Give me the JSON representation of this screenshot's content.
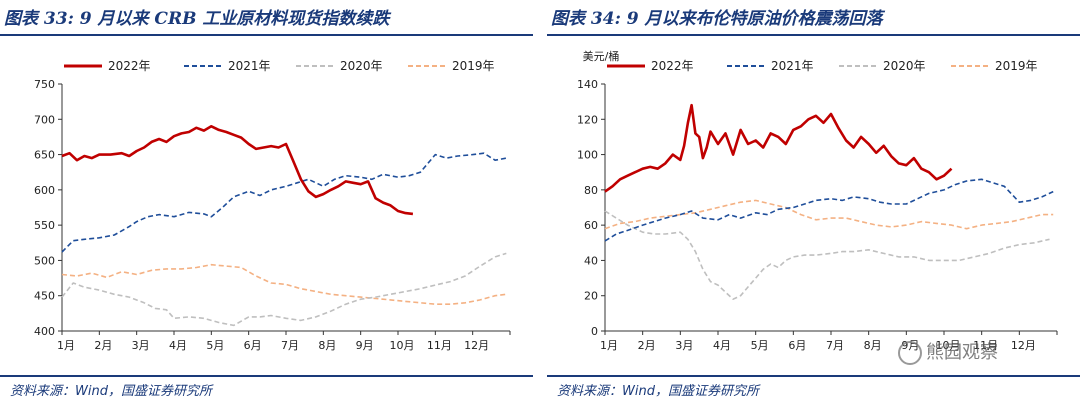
{
  "charts": [
    {
      "title": "图表 33: 9 月以来 CRB 工业原材料现货指数续跌",
      "source": "资料来源：Wind，国盛证券研究所"
    },
    {
      "title": "图表 34: 9 月以来布伦特原油价格震荡回落",
      "source": "资料来源：Wind，国盛证券研究所"
    }
  ],
  "watermark": "熊园观察",
  "colors": {
    "s2022": "#c00000",
    "s2021": "#1f4e9a",
    "s2020": "#bfbfbf",
    "s2019": "#f4b183",
    "accent": "#1a3a7a"
  },
  "chart_data": [
    {
      "type": "line",
      "title": "图表 33: 9 月以来 CRB 工业原材料现货指数续跌",
      "unit": "",
      "categories": [
        "1月",
        "2月",
        "3月",
        "4月",
        "5月",
        "6月",
        "7月",
        "8月",
        "9月",
        "10月",
        "11月",
        "12月"
      ],
      "ylim": [
        400,
        750
      ],
      "yticks": [
        400,
        450,
        500,
        550,
        600,
        650,
        700,
        750
      ],
      "legend": [
        "2022年",
        "2021年",
        "2020年",
        "2019年"
      ],
      "series": [
        {
          "name": "2022年",
          "style": "solid",
          "x": [
            0,
            0.2,
            0.4,
            0.6,
            0.8,
            1.0,
            1.3,
            1.6,
            1.8,
            2.0,
            2.2,
            2.4,
            2.6,
            2.8,
            3.0,
            3.2,
            3.4,
            3.6,
            3.8,
            4.0,
            4.2,
            4.4,
            4.6,
            4.8,
            5.0,
            5.2,
            5.4,
            5.6,
            5.8,
            6.0,
            6.2,
            6.4,
            6.6,
            6.8,
            7.0,
            7.2,
            7.4,
            7.6,
            7.8,
            8.0,
            8.2,
            8.4,
            8.6,
            8.8,
            9.0,
            9.2,
            9.4
          ],
          "y": [
            648,
            652,
            642,
            648,
            645,
            650,
            650,
            652,
            648,
            655,
            660,
            668,
            672,
            668,
            676,
            680,
            682,
            688,
            684,
            690,
            685,
            682,
            678,
            674,
            665,
            658,
            660,
            662,
            660,
            665,
            640,
            615,
            598,
            590,
            594,
            600,
            605,
            612,
            610,
            608,
            612,
            588,
            582,
            578,
            570,
            567,
            566
          ]
        },
        {
          "name": "2021年",
          "style": "dash",
          "x": [
            0,
            0.3,
            0.6,
            1.0,
            1.4,
            1.8,
            2.0,
            2.3,
            2.6,
            3.0,
            3.4,
            3.8,
            4.0,
            4.3,
            4.6,
            5.0,
            5.3,
            5.6,
            6.0,
            6.3,
            6.6,
            7.0,
            7.3,
            7.6,
            8.0,
            8.3,
            8.6,
            9.0,
            9.3,
            9.6,
            10.0,
            10.3,
            10.6,
            11.0,
            11.3,
            11.6,
            11.9
          ],
          "y": [
            512,
            528,
            530,
            532,
            536,
            548,
            555,
            562,
            565,
            562,
            568,
            566,
            562,
            575,
            590,
            598,
            592,
            600,
            605,
            610,
            615,
            605,
            615,
            620,
            618,
            615,
            622,
            618,
            620,
            625,
            650,
            645,
            648,
            650,
            652,
            642,
            645
          ]
        },
        {
          "name": "2020年",
          "style": "dash",
          "x": [
            0,
            0.3,
            0.6,
            1.0,
            1.4,
            1.8,
            2.2,
            2.5,
            2.8,
            3.0,
            3.4,
            3.8,
            4.2,
            4.6,
            5.0,
            5.3,
            5.6,
            6.0,
            6.4,
            6.8,
            7.2,
            7.6,
            8.0,
            8.4,
            8.8,
            9.2,
            9.6,
            10.0,
            10.4,
            10.8,
            11.2,
            11.6,
            11.9
          ],
          "y": [
            448,
            468,
            462,
            458,
            452,
            448,
            440,
            432,
            430,
            418,
            420,
            418,
            412,
            408,
            420,
            420,
            422,
            418,
            415,
            420,
            428,
            438,
            445,
            448,
            452,
            456,
            460,
            465,
            470,
            478,
            492,
            505,
            510
          ]
        },
        {
          "name": "2019年",
          "style": "dash",
          "x": [
            0,
            0.4,
            0.8,
            1.2,
            1.6,
            2.0,
            2.4,
            2.8,
            3.2,
            3.6,
            4.0,
            4.4,
            4.8,
            5.2,
            5.6,
            6.0,
            6.4,
            6.8,
            7.2,
            7.6,
            8.0,
            8.4,
            8.8,
            9.2,
            9.6,
            10.0,
            10.4,
            10.8,
            11.2,
            11.6,
            11.9
          ],
          "y": [
            480,
            478,
            482,
            476,
            484,
            480,
            486,
            488,
            488,
            490,
            494,
            492,
            490,
            478,
            468,
            466,
            460,
            456,
            452,
            450,
            448,
            446,
            444,
            442,
            440,
            438,
            438,
            440,
            444,
            450,
            452
          ]
        }
      ]
    },
    {
      "type": "line",
      "title": "图表 34: 9 月以来布伦特原油价格震荡回落",
      "unit": "美元/桶",
      "categories": [
        "1月",
        "2月",
        "3月",
        "4月",
        "5月",
        "6月",
        "7月",
        "8月",
        "9月",
        "10月",
        "11月",
        "12月"
      ],
      "ylim": [
        0,
        140
      ],
      "yticks": [
        0,
        20,
        40,
        60,
        80,
        100,
        120,
        140
      ],
      "legend": [
        "2022年",
        "2021年",
        "2020年",
        "2019年"
      ],
      "series": [
        {
          "name": "2022年",
          "style": "solid",
          "x": [
            0,
            0.2,
            0.4,
            0.6,
            0.8,
            1.0,
            1.2,
            1.4,
            1.6,
            1.8,
            2.0,
            2.1,
            2.2,
            2.3,
            2.4,
            2.5,
            2.6,
            2.7,
            2.8,
            3.0,
            3.2,
            3.4,
            3.6,
            3.8,
            4.0,
            4.2,
            4.4,
            4.6,
            4.8,
            5.0,
            5.2,
            5.4,
            5.6,
            5.8,
            6.0,
            6.2,
            6.4,
            6.6,
            6.8,
            7.0,
            7.2,
            7.4,
            7.6,
            7.8,
            8.0,
            8.2,
            8.4,
            8.6,
            8.8,
            9.0,
            9.2
          ],
          "y": [
            79,
            82,
            86,
            88,
            90,
            92,
            93,
            92,
            95,
            100,
            97,
            105,
            118,
            128,
            112,
            110,
            98,
            104,
            113,
            106,
            112,
            100,
            114,
            106,
            108,
            104,
            112,
            110,
            106,
            114,
            116,
            120,
            122,
            118,
            123,
            115,
            108,
            104,
            110,
            106,
            101,
            105,
            99,
            95,
            94,
            98,
            92,
            90,
            86,
            88,
            92
          ]
        },
        {
          "name": "2021年",
          "style": "dash",
          "x": [
            0,
            0.3,
            0.6,
            1.0,
            1.3,
            1.6,
            2.0,
            2.3,
            2.6,
            3.0,
            3.3,
            3.6,
            4.0,
            4.3,
            4.6,
            5.0,
            5.3,
            5.6,
            6.0,
            6.3,
            6.6,
            7.0,
            7.3,
            7.6,
            8.0,
            8.3,
            8.6,
            9.0,
            9.3,
            9.6,
            10.0,
            10.3,
            10.6,
            11.0,
            11.3,
            11.6,
            11.9
          ],
          "y": [
            51,
            55,
            57,
            60,
            62,
            64,
            66,
            68,
            64,
            63,
            66,
            64,
            67,
            66,
            69,
            70,
            72,
            74,
            75,
            74,
            76,
            75,
            73,
            72,
            72,
            75,
            78,
            80,
            83,
            85,
            86,
            84,
            82,
            73,
            74,
            76,
            79
          ]
        },
        {
          "name": "2020年",
          "style": "dash",
          "x": [
            0,
            0.3,
            0.6,
            1.0,
            1.3,
            1.6,
            2.0,
            2.2,
            2.4,
            2.6,
            2.8,
            3.0,
            3.2,
            3.4,
            3.6,
            3.8,
            4.0,
            4.2,
            4.4,
            4.6,
            4.8,
            5.0,
            5.3,
            5.6,
            6.0,
            6.3,
            6.6,
            7.0,
            7.4,
            7.8,
            8.2,
            8.6,
            9.0,
            9.4,
            9.8,
            10.2,
            10.6,
            11.0,
            11.4,
            11.8
          ],
          "y": [
            68,
            64,
            60,
            56,
            55,
            55,
            56,
            52,
            45,
            35,
            28,
            26,
            22,
            18,
            20,
            25,
            30,
            35,
            38,
            36,
            40,
            42,
            43,
            43,
            44,
            45,
            45,
            46,
            44,
            42,
            42,
            40,
            40,
            40,
            42,
            44,
            47,
            49,
            50,
            52
          ]
        },
        {
          "name": "2019年",
          "style": "dash",
          "x": [
            0,
            0.4,
            0.8,
            1.2,
            1.6,
            2.0,
            2.4,
            2.8,
            3.2,
            3.6,
            4.0,
            4.4,
            4.8,
            5.2,
            5.6,
            6.0,
            6.4,
            6.8,
            7.2,
            7.6,
            8.0,
            8.4,
            8.8,
            9.2,
            9.6,
            10.0,
            10.4,
            10.8,
            11.2,
            11.6,
            11.9
          ],
          "y": [
            58,
            61,
            62,
            64,
            65,
            66,
            67,
            69,
            71,
            73,
            74,
            72,
            70,
            66,
            63,
            64,
            64,
            62,
            60,
            59,
            60,
            62,
            61,
            60,
            58,
            60,
            61,
            62,
            64,
            66,
            66
          ]
        }
      ]
    }
  ]
}
